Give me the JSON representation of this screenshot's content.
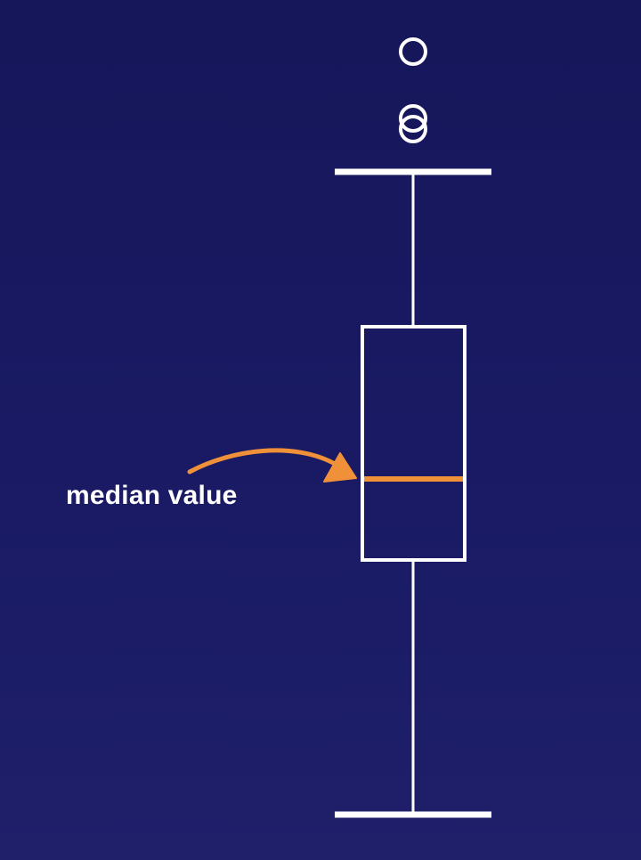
{
  "diagram": {
    "type": "boxplot",
    "annotation": {
      "label": "median value"
    },
    "colors": {
      "background_top": "#16165a",
      "background_bottom": "#1f1f6a",
      "stroke": "#ffffff",
      "median": "#f0913a",
      "arrow": "#f0913a"
    }
  }
}
